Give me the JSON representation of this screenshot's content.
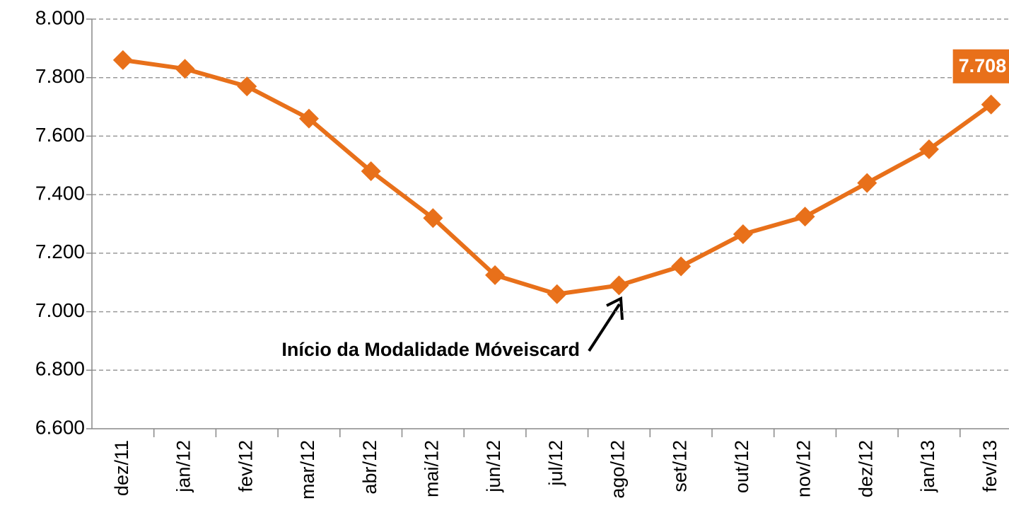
{
  "chart_data": {
    "type": "line",
    "categories": [
      "dez/11",
      "jan/12",
      "fev/12",
      "mar/12",
      "abr/12",
      "mai/12",
      "jun/12",
      "jul/12",
      "ago/12",
      "set/12",
      "out/12",
      "nov/12",
      "dez/12",
      "jan/13",
      "fev/13"
    ],
    "series": [
      {
        "color": "#e8701a",
        "values": [
          7860,
          7830,
          7770,
          7660,
          7480,
          7320,
          7125,
          7060,
          7090,
          7155,
          7265,
          7325,
          7440,
          7555,
          7708
        ],
        "value_labels": [
          null,
          null,
          null,
          null,
          null,
          null,
          null,
          null,
          null,
          null,
          null,
          null,
          null,
          null,
          "7.708"
        ]
      }
    ],
    "ylim": [
      6600,
      8000
    ],
    "yticks": [
      {
        "value": 6600,
        "label": "6.600"
      },
      {
        "value": 6800,
        "label": "6.800"
      },
      {
        "value": 7000,
        "label": "7.000"
      },
      {
        "value": 7200,
        "label": "7.200"
      },
      {
        "value": 7400,
        "label": "7.400"
      },
      {
        "value": 7600,
        "label": "7.600"
      },
      {
        "value": 7800,
        "label": "7.800"
      },
      {
        "value": 8000,
        "label": "8.000"
      }
    ],
    "grid": true,
    "annotation": "Início da Modalidade Móveiscard"
  }
}
